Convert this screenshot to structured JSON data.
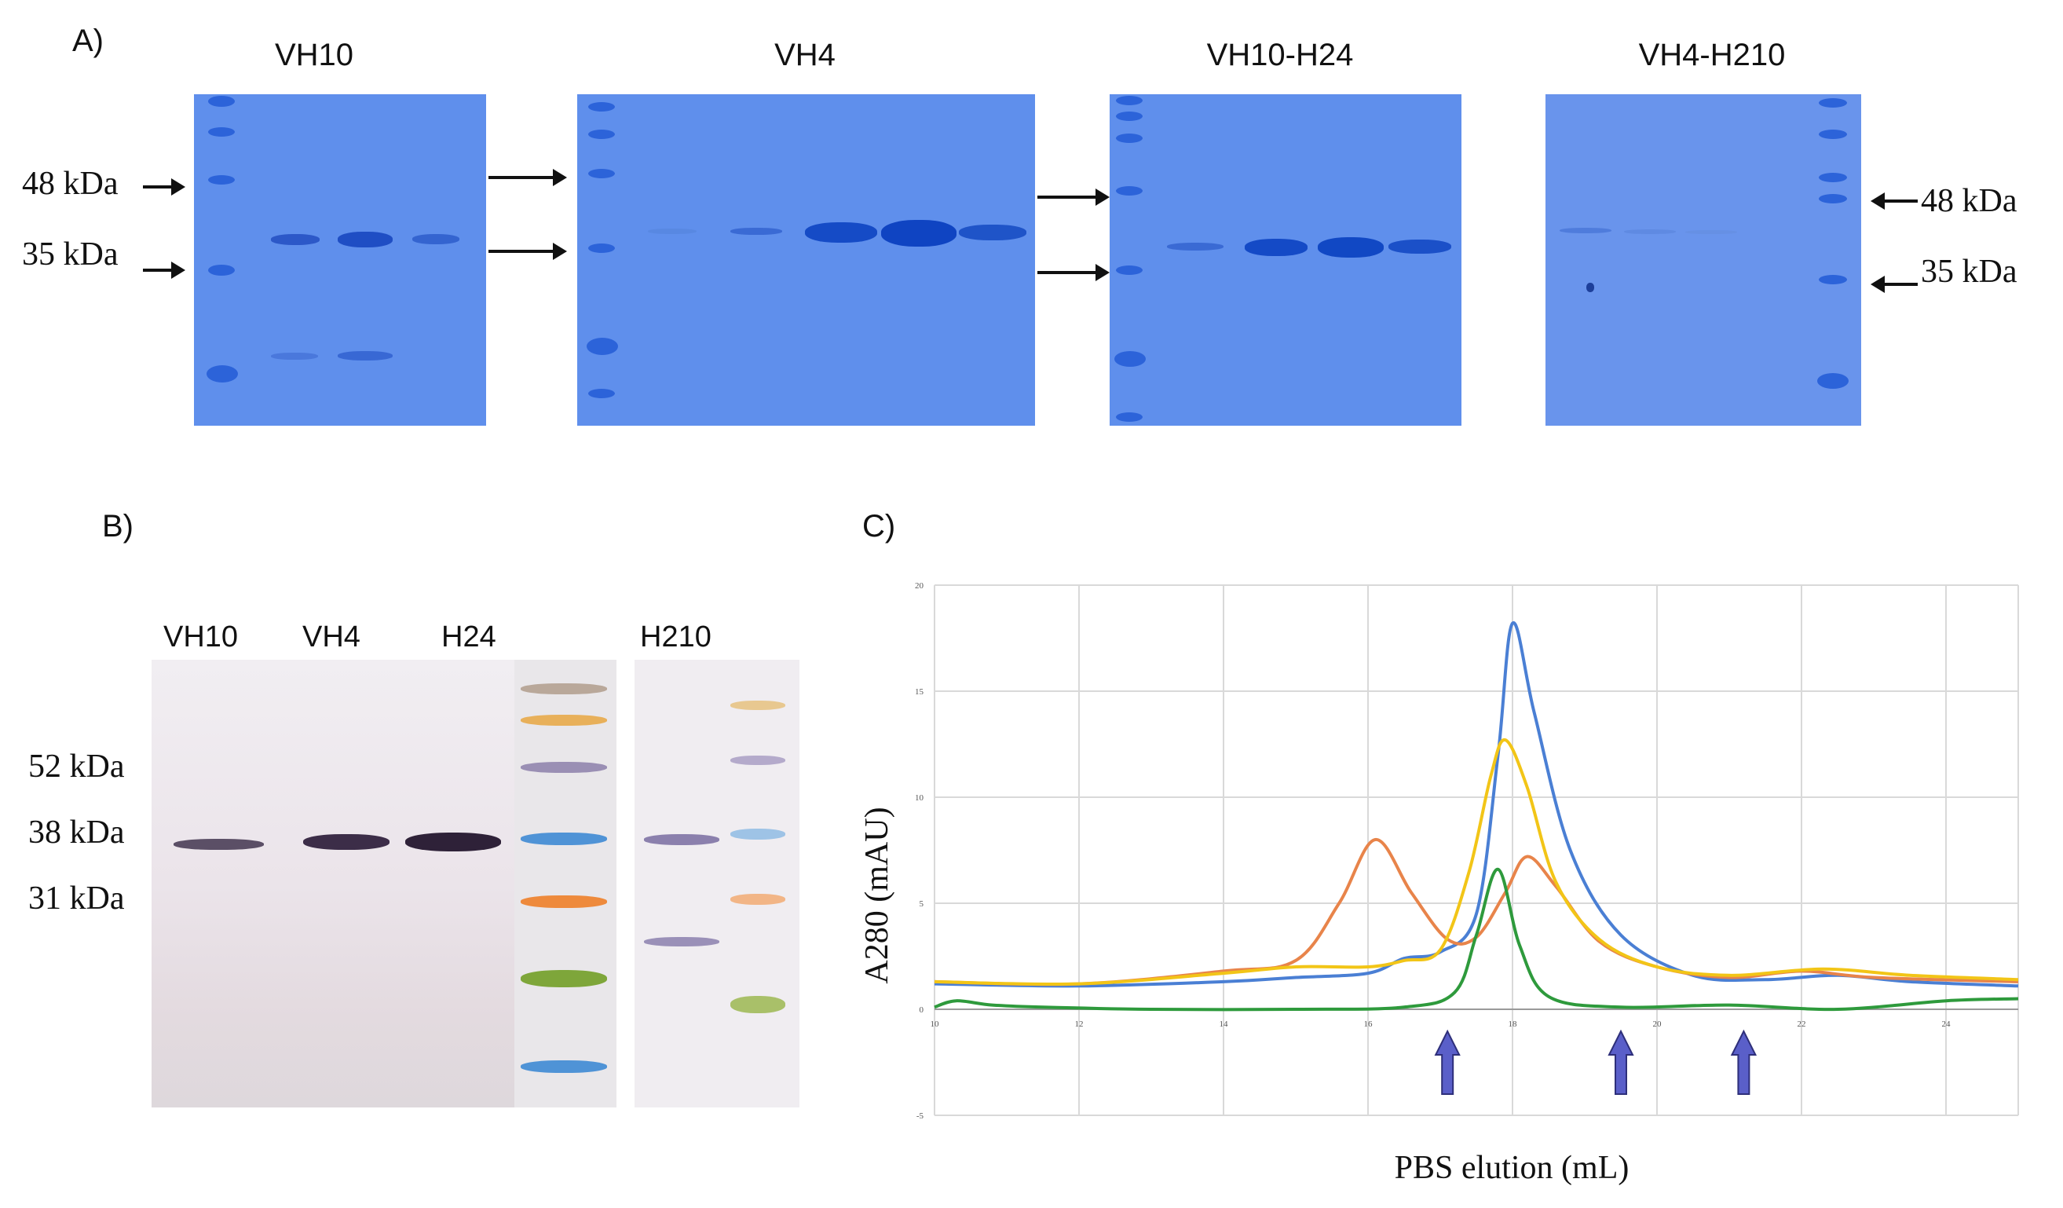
{
  "panel_a": {
    "label": "A)",
    "gels": [
      {
        "title": "VH10"
      },
      {
        "title": "VH4"
      },
      {
        "title": "VH10-H24"
      },
      {
        "title": "VH4-H210"
      }
    ],
    "markers_left": [
      "48 kDa",
      "35 kDa"
    ],
    "markers_right": [
      "48 kDa",
      "35 kDa"
    ]
  },
  "panel_b": {
    "label": "B)",
    "lanes": [
      "VH10",
      "VH4",
      "H24",
      "H210"
    ],
    "markers": [
      "52 kDa",
      "38 kDa",
      "31 kDa"
    ]
  },
  "panel_c": {
    "label": "C)",
    "ylabel": "A280  (mAU)",
    "xlabel": "PBS elution (mL)",
    "x_ticks": [
      "10",
      "12",
      "14",
      "16",
      "18",
      "20",
      "22",
      "24"
    ],
    "y_ticks": [
      "20",
      "15",
      "10",
      "5",
      "0",
      "-5"
    ],
    "arrow_positions_ml": [
      17.1,
      19.5,
      21.2
    ],
    "colors": {
      "blue": "#4a7fd4",
      "orange": "#e8844a",
      "yellow": "#f2c517",
      "green": "#2e9a3c",
      "arrow": "#5a5fc9"
    }
  },
  "chart_data": {
    "type": "line",
    "title": "",
    "xlabel": "PBS elution (mL)",
    "ylabel": "A280  (mAU)",
    "xlim": [
      10,
      25
    ],
    "ylim": [
      -5,
      20
    ],
    "grid": true,
    "series": [
      {
        "name": "blue",
        "color": "#4a7fd4",
        "x": [
          10,
          12,
          14,
          15,
          16,
          16.5,
          17,
          17.5,
          17.8,
          18,
          18.3,
          18.8,
          19.5,
          20.5,
          21.5,
          22.5,
          23.5,
          25
        ],
        "y": [
          1.2,
          1.1,
          1.3,
          1.5,
          1.7,
          2.4,
          2.7,
          4.5,
          12,
          18.2,
          14,
          7.5,
          3.5,
          1.6,
          1.4,
          1.6,
          1.3,
          1.1
        ]
      },
      {
        "name": "orange",
        "color": "#e8844a",
        "x": [
          10,
          12,
          14,
          15,
          15.6,
          16.1,
          16.6,
          17.1,
          17.5,
          17.9,
          18.2,
          18.6,
          19.2,
          20,
          21,
          22,
          23,
          25
        ],
        "y": [
          1.3,
          1.2,
          1.8,
          2.3,
          5,
          8,
          5.5,
          3.3,
          3.4,
          5.5,
          7.2,
          5.8,
          3.2,
          2.0,
          1.5,
          1.8,
          1.5,
          1.3
        ]
      },
      {
        "name": "yellow",
        "color": "#f2c517",
        "x": [
          10,
          12,
          14,
          15,
          16,
          16.5,
          17,
          17.4,
          17.7,
          17.9,
          18.2,
          18.6,
          19.2,
          20,
          21,
          22.3,
          23.5,
          25
        ],
        "y": [
          1.3,
          1.2,
          1.7,
          2.0,
          2.0,
          2.3,
          2.8,
          6.5,
          11,
          12.7,
          10.5,
          6,
          3.3,
          2.0,
          1.6,
          1.9,
          1.6,
          1.4
        ]
      },
      {
        "name": "green",
        "color": "#2e9a3c",
        "x": [
          10,
          10.3,
          10.8,
          11.5,
          13,
          15,
          16.5,
          17.2,
          17.5,
          17.8,
          18.1,
          18.5,
          19.5,
          21,
          22.5,
          24,
          25
        ],
        "y": [
          0.1,
          0.4,
          0.2,
          0.1,
          0,
          0,
          0.1,
          0.8,
          3.5,
          6.6,
          3.0,
          0.6,
          0.1,
          0.2,
          0,
          0.4,
          0.5
        ]
      }
    ]
  }
}
